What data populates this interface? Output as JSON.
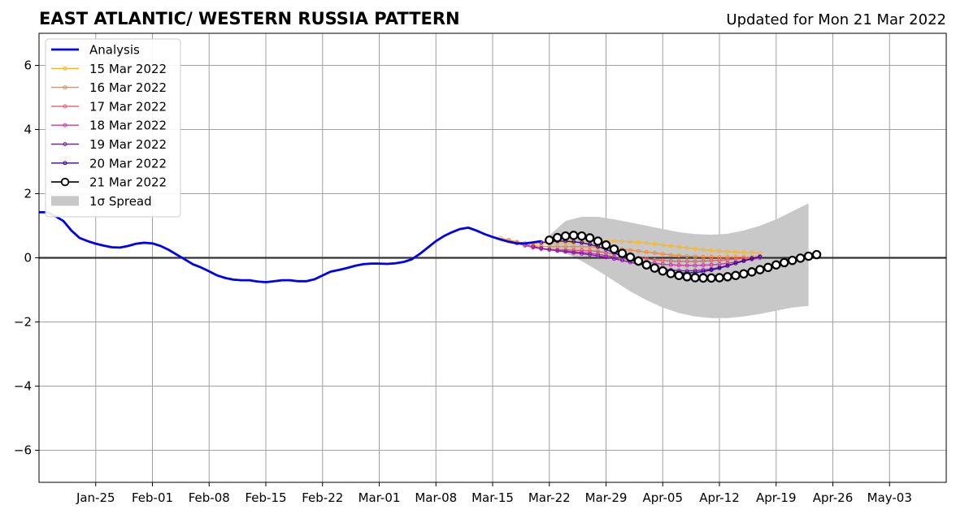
{
  "chart_data": {
    "type": "line",
    "title": "EAST ATLANTIC/ WESTERN RUSSIA PATTERN",
    "subtitle": "Updated for Mon 21 Mar 2022",
    "xlabel": "",
    "ylabel": "",
    "x_range": [
      "2022-01-18",
      "2022-05-10"
    ],
    "ylim": [
      -7,
      7
    ],
    "grid": true,
    "legend_position": "top-left",
    "x_ticks": [
      {
        "date": "2022-01-25",
        "label": "Jan-25"
      },
      {
        "date": "2022-02-01",
        "label": "Feb-01"
      },
      {
        "date": "2022-02-08",
        "label": "Feb-08"
      },
      {
        "date": "2022-02-15",
        "label": "Feb-15"
      },
      {
        "date": "2022-02-22",
        "label": "Feb-22"
      },
      {
        "date": "2022-03-01",
        "label": "Mar-01"
      },
      {
        "date": "2022-03-08",
        "label": "Mar-08"
      },
      {
        "date": "2022-03-15",
        "label": "Mar-15"
      },
      {
        "date": "2022-03-22",
        "label": "Mar-22"
      },
      {
        "date": "2022-03-29",
        "label": "Mar-29"
      },
      {
        "date": "2022-04-05",
        "label": "Apr-05"
      },
      {
        "date": "2022-04-12",
        "label": "Apr-12"
      },
      {
        "date": "2022-04-19",
        "label": "Apr-19"
      },
      {
        "date": "2022-04-26",
        "label": "Apr-26"
      },
      {
        "date": "2022-05-03",
        "label": "May-03"
      }
    ],
    "y_ticks": [
      {
        "value": -6,
        "label": "−6"
      },
      {
        "value": -4,
        "label": "−4"
      },
      {
        "value": -2,
        "label": "−2"
      },
      {
        "value": 0,
        "label": "0"
      },
      {
        "value": 2,
        "label": "2"
      },
      {
        "value": 4,
        "label": "4"
      },
      {
        "value": 6,
        "label": "6"
      }
    ],
    "analysis": {
      "name": "Analysis",
      "color": "#0000ee",
      "points": [
        [
          "2022-01-18",
          1.42
        ],
        [
          "2022-01-19",
          1.42
        ],
        [
          "2022-01-20",
          1.3
        ],
        [
          "2022-01-21",
          1.15
        ],
        [
          "2022-01-22",
          0.85
        ],
        [
          "2022-01-23",
          0.62
        ],
        [
          "2022-01-24",
          0.52
        ],
        [
          "2022-01-25",
          0.44
        ],
        [
          "2022-01-26",
          0.38
        ],
        [
          "2022-01-27",
          0.33
        ],
        [
          "2022-01-28",
          0.32
        ],
        [
          "2022-01-29",
          0.37
        ],
        [
          "2022-01-30",
          0.44
        ],
        [
          "2022-01-31",
          0.47
        ],
        [
          "2022-02-01",
          0.45
        ],
        [
          "2022-02-02",
          0.37
        ],
        [
          "2022-02-03",
          0.25
        ],
        [
          "2022-02-04",
          0.1
        ],
        [
          "2022-02-05",
          -0.05
        ],
        [
          "2022-02-06",
          -0.2
        ],
        [
          "2022-02-07",
          -0.3
        ],
        [
          "2022-02-08",
          -0.42
        ],
        [
          "2022-02-09",
          -0.55
        ],
        [
          "2022-02-10",
          -0.63
        ],
        [
          "2022-02-11",
          -0.68
        ],
        [
          "2022-02-12",
          -0.7
        ],
        [
          "2022-02-13",
          -0.7
        ],
        [
          "2022-02-14",
          -0.74
        ],
        [
          "2022-02-15",
          -0.76
        ],
        [
          "2022-02-16",
          -0.73
        ],
        [
          "2022-02-17",
          -0.7
        ],
        [
          "2022-02-18",
          -0.7
        ],
        [
          "2022-02-19",
          -0.73
        ],
        [
          "2022-02-20",
          -0.73
        ],
        [
          "2022-02-21",
          -0.67
        ],
        [
          "2022-02-22",
          -0.55
        ],
        [
          "2022-02-23",
          -0.43
        ],
        [
          "2022-02-24",
          -0.38
        ],
        [
          "2022-02-25",
          -0.32
        ],
        [
          "2022-02-26",
          -0.25
        ],
        [
          "2022-02-27",
          -0.2
        ],
        [
          "2022-02-28",
          -0.18
        ],
        [
          "2022-03-01",
          -0.18
        ],
        [
          "2022-03-02",
          -0.19
        ],
        [
          "2022-03-03",
          -0.17
        ],
        [
          "2022-03-04",
          -0.13
        ],
        [
          "2022-03-05",
          -0.05
        ],
        [
          "2022-03-06",
          0.12
        ],
        [
          "2022-03-07",
          0.32
        ],
        [
          "2022-03-08",
          0.52
        ],
        [
          "2022-03-09",
          0.68
        ],
        [
          "2022-03-10",
          0.8
        ],
        [
          "2022-03-11",
          0.9
        ],
        [
          "2022-03-12",
          0.94
        ],
        [
          "2022-03-13",
          0.85
        ],
        [
          "2022-03-14",
          0.74
        ],
        [
          "2022-03-15",
          0.65
        ],
        [
          "2022-03-16",
          0.57
        ],
        [
          "2022-03-17",
          0.5
        ],
        [
          "2022-03-18",
          0.45
        ],
        [
          "2022-03-19",
          0.45
        ],
        [
          "2022-03-20",
          0.48
        ],
        [
          "2022-03-21",
          0.52
        ]
      ]
    },
    "forecasts": [
      {
        "name": "15 Mar 2022",
        "color": "#f5b730",
        "start": "2022-03-16",
        "step_days": 1,
        "values": [
          0.62,
          0.56,
          0.5,
          0.46,
          0.44,
          0.44,
          0.45,
          0.46,
          0.47,
          0.48,
          0.5,
          0.51,
          0.52,
          0.52,
          0.52,
          0.51,
          0.5,
          0.48,
          0.46,
          0.43,
          0.4,
          0.37,
          0.34,
          0.31,
          0.28,
          0.25,
          0.23,
          0.21,
          0.19,
          0.18,
          0.17,
          0.16,
          0.15
        ]
      },
      {
        "name": "16 Mar 2022",
        "color": "#ef8a45",
        "start": "2022-03-17",
        "step_days": 1,
        "values": [
          0.55,
          0.48,
          0.42,
          0.38,
          0.36,
          0.35,
          0.35,
          0.35,
          0.35,
          0.35,
          0.34,
          0.33,
          0.31,
          0.29,
          0.27,
          0.24,
          0.21,
          0.18,
          0.15,
          0.12,
          0.09,
          0.07,
          0.05,
          0.04,
          0.03,
          0.03,
          0.02,
          0.02,
          0.02,
          0.02,
          0.02,
          0.03
        ]
      },
      {
        "name": "17 Mar 2022",
        "color": "#e0606a",
        "start": "2022-03-18",
        "step_days": 1,
        "values": [
          0.45,
          0.38,
          0.32,
          0.28,
          0.26,
          0.25,
          0.25,
          0.24,
          0.23,
          0.22,
          0.2,
          0.16,
          0.12,
          0.08,
          0.04,
          0.0,
          -0.03,
          -0.06,
          -0.08,
          -0.1,
          -0.11,
          -0.11,
          -0.11,
          -0.1,
          -0.09,
          -0.08,
          -0.06,
          -0.04,
          -0.02,
          0.0,
          0.02
        ]
      },
      {
        "name": "18 Mar 2022",
        "color": "#c03fa0",
        "start": "2022-03-19",
        "step_days": 1,
        "values": [
          0.4,
          0.33,
          0.28,
          0.25,
          0.23,
          0.21,
          0.19,
          0.17,
          0.14,
          0.11,
          0.07,
          0.03,
          -0.02,
          -0.06,
          -0.1,
          -0.14,
          -0.17,
          -0.2,
          -0.22,
          -0.23,
          -0.24,
          -0.24,
          -0.23,
          -0.22,
          -0.2,
          -0.17,
          -0.13,
          -0.09,
          -0.05,
          -0.01
        ]
      },
      {
        "name": "19 Mar 2022",
        "color": "#8a18b0",
        "start": "2022-03-20",
        "step_days": 1,
        "values": [
          0.35,
          0.3,
          0.26,
          0.22,
          0.19,
          0.16,
          0.13,
          0.1,
          0.06,
          0.02,
          -0.03,
          -0.08,
          -0.14,
          -0.19,
          -0.25,
          -0.3,
          -0.35,
          -0.38,
          -0.4,
          -0.41,
          -0.4,
          -0.38,
          -0.35,
          -0.3,
          -0.24,
          -0.17,
          -0.1,
          -0.03,
          0.03
        ]
      },
      {
        "name": "20 Mar 2022",
        "color": "#3c0a8c",
        "start": "2022-03-21",
        "step_days": 1,
        "values": [
          0.48,
          0.5,
          0.52,
          0.52,
          0.5,
          0.47,
          0.42,
          0.35,
          0.26,
          0.16,
          0.05,
          -0.06,
          -0.16,
          -0.26,
          -0.34,
          -0.41,
          -0.45,
          -0.47,
          -0.47,
          -0.46,
          -0.43,
          -0.38,
          -0.32,
          -0.25,
          -0.17,
          -0.09,
          -0.02,
          0.04
        ]
      }
    ],
    "current_forecast": {
      "name": "21 Mar 2022",
      "color": "#000000",
      "start": "2022-03-22",
      "step_days": 1,
      "values": [
        0.55,
        0.63,
        0.68,
        0.7,
        0.68,
        0.62,
        0.52,
        0.4,
        0.27,
        0.14,
        0.02,
        -0.1,
        -0.22,
        -0.32,
        -0.41,
        -0.49,
        -0.55,
        -0.59,
        -0.62,
        -0.63,
        -0.63,
        -0.62,
        -0.59,
        -0.55,
        -0.5,
        -0.44,
        -0.37,
        -0.3,
        -0.22,
        -0.15,
        -0.08,
        -0.01,
        0.05,
        0.1
      ]
    },
    "spread": {
      "name": "1σ Spread",
      "color": "#c8c8c8",
      "x": [
        "2022-03-22",
        "2022-03-24",
        "2022-03-26",
        "2022-03-28",
        "2022-03-30",
        "2022-04-01",
        "2022-04-03",
        "2022-04-05",
        "2022-04-07",
        "2022-04-09",
        "2022-04-11",
        "2022-04-13",
        "2022-04-15",
        "2022-04-17",
        "2022-04-19",
        "2022-04-21",
        "2022-04-23"
      ],
      "upper": [
        0.7,
        1.15,
        1.28,
        1.28,
        1.2,
        1.1,
        1.0,
        0.9,
        0.8,
        0.74,
        0.72,
        0.75,
        0.85,
        1.0,
        1.2,
        1.45,
        1.7
      ],
      "lower": [
        0.3,
        0.15,
        -0.1,
        -0.4,
        -0.72,
        -1.05,
        -1.32,
        -1.55,
        -1.72,
        -1.83,
        -1.88,
        -1.88,
        -1.83,
        -1.75,
        -1.65,
        -1.55,
        -1.5
      ]
    }
  }
}
